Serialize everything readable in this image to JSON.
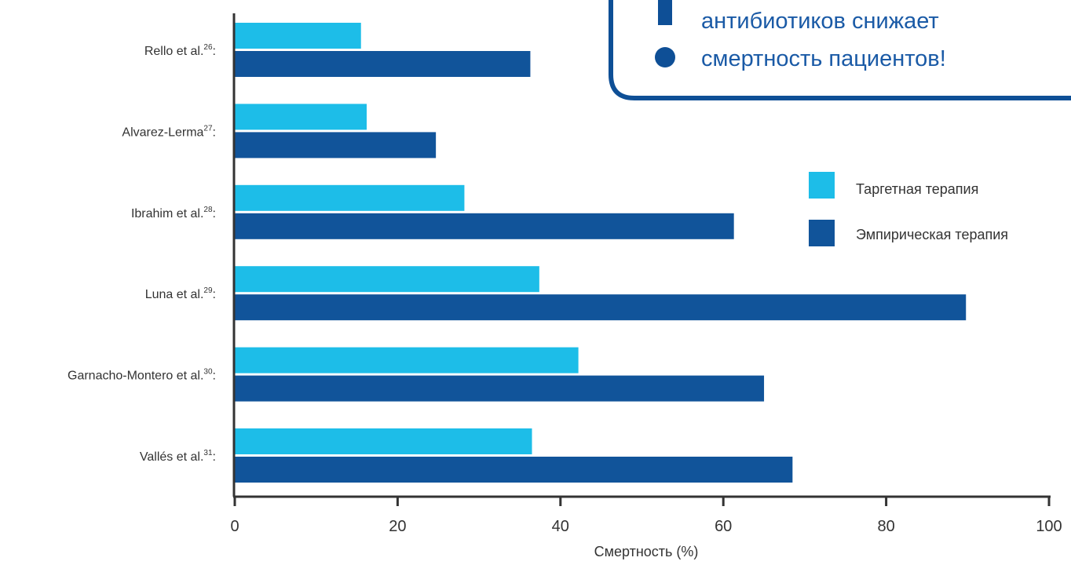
{
  "callout": {
    "lines": [
      "антибиотиков снижает",
      "смертность пациентов!"
    ],
    "color": "#0e4f96"
  },
  "colors": {
    "targeted": "#1dbde8",
    "empirical": "#11549a",
    "axis": "#333333"
  },
  "chart_data": {
    "type": "bar",
    "orientation": "horizontal",
    "categories": [
      {
        "name": "Rello et al.",
        "sup": "26"
      },
      {
        "name": "Alvarez-Lerma",
        "sup": "27"
      },
      {
        "name": "Ibrahim et al.",
        "sup": "28"
      },
      {
        "name": "Luna et al.",
        "sup": "29"
      },
      {
        "name": "Garnacho-Montero et al.",
        "sup": "30"
      },
      {
        "name": "Vallés et al.",
        "sup": "31"
      }
    ],
    "series": [
      {
        "name": "Таргетная терапия",
        "values": [
          15.5,
          16.2,
          28.2,
          37.4,
          42.2,
          36.5
        ]
      },
      {
        "name": "Эмпирическая терапия",
        "values": [
          36.3,
          24.7,
          61.3,
          89.8,
          65.0,
          68.5
        ]
      }
    ],
    "xlabel": "Смертность (%)",
    "xlim": [
      0,
      100
    ],
    "xticks": [
      "0",
      "20",
      "40",
      "60",
      "80",
      "100"
    ],
    "legend_position": "right"
  }
}
